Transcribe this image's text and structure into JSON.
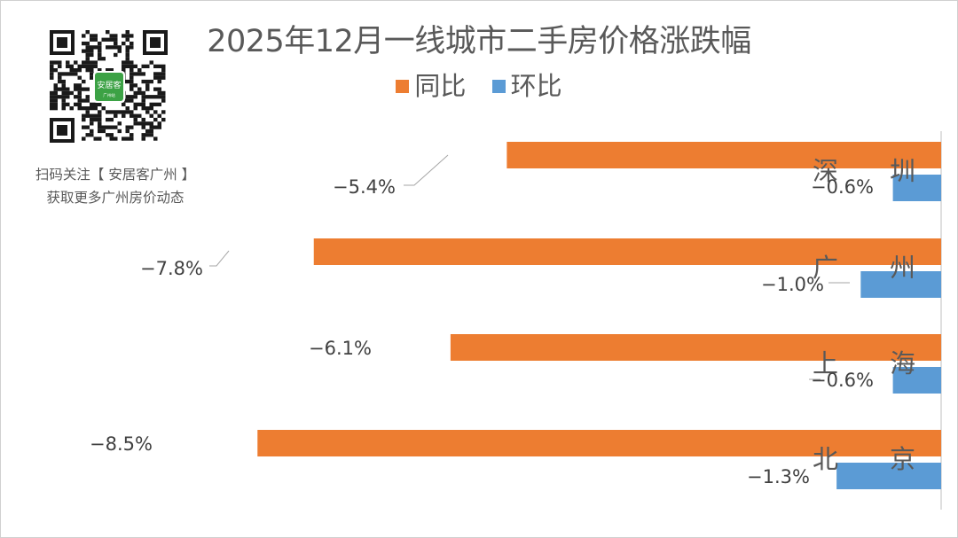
{
  "promo": {
    "qr_logo_text": "安居客",
    "qr_logo_sub": "广州站",
    "caption_line1": "扫码关注【 安居客广州 】",
    "caption_line2": "获取更多广州房价动态"
  },
  "colors": {
    "yoy": "#ED7D31",
    "mom": "#5B9BD5",
    "text": "#595959",
    "axis": "#BFBFBF"
  },
  "chart_data": {
    "type": "bar",
    "orientation": "horizontal",
    "title": "2025年12月一线城市二手房价格涨跌幅",
    "categories": [
      "深　　圳",
      "广　　州",
      "上　　海",
      "北　　京"
    ],
    "series": [
      {
        "name": "同比",
        "values": [
          -5.4,
          -7.8,
          -6.1,
          -8.5
        ],
        "labels": [
          "−5.4%",
          "−7.8%",
          "−6.1%",
          "−8.5%"
        ]
      },
      {
        "name": "环比",
        "values": [
          -0.6,
          -1.0,
          -0.6,
          -1.3
        ],
        "labels": [
          "−0.6%",
          "−1.0%",
          "−0.6%",
          "−1.3%"
        ]
      }
    ],
    "xlim": [
      -9.65,
      0
    ],
    "legend_position": "top",
    "grid": false
  }
}
